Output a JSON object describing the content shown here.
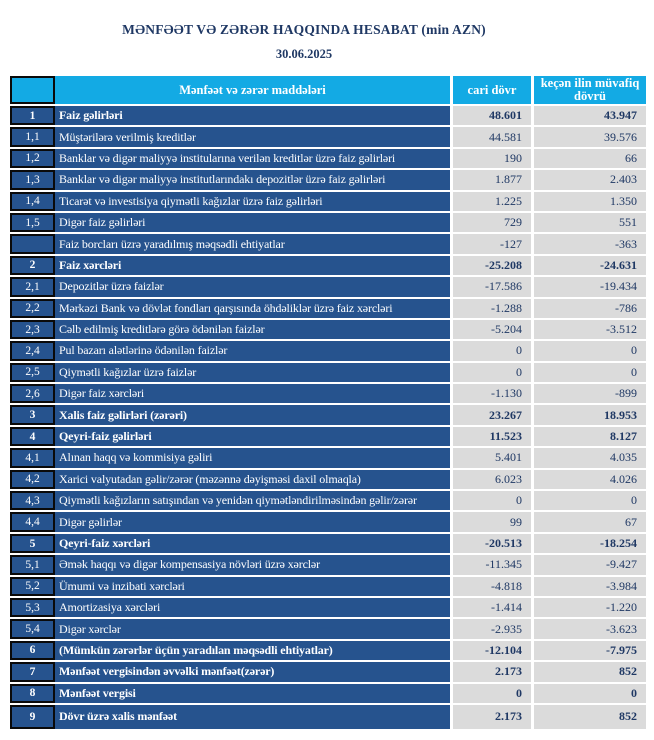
{
  "page": {
    "title": "MƏNFƏƏT VƏ ZƏRƏR HAQQINDA HESABAT (min AZN)",
    "date": "30.06.2025"
  },
  "colors": {
    "header_blue": "#13AAE4",
    "row_blue": "#26538E",
    "cell_gray": "#DBDBDB",
    "value_navy": "#1F3864",
    "title_navy": "#1F3864",
    "border_black": "#0A0A0A"
  },
  "table": {
    "headers": {
      "number": "",
      "items": "Mənfəət və zərər maddələri",
      "current": "cari dövr",
      "previous": "keçən ilin müvafiq dövrü"
    },
    "rows": [
      {
        "num": "1",
        "label": "Faiz  gəlirləri",
        "cur": "48.601",
        "prev": "43.947",
        "bold": true
      },
      {
        "num": "1,1",
        "label": "Müştərilərə verilmiş kreditlər",
        "cur": "44.581",
        "prev": "39.576",
        "bold": false
      },
      {
        "num": "1,2",
        "label": "Banklar və digər maliyyə institularına verilən kreditlər üzrə faiz gəlirləri",
        "cur": "190",
        "prev": "66",
        "bold": false
      },
      {
        "num": "1,3",
        "label": "Banklar və digər maliyyə institutlarındakı depozitlər üzrə faiz gəlirləri",
        "cur": "1.877",
        "prev": "2.403",
        "bold": false
      },
      {
        "num": "1,4",
        "label": "Ticarət və investisiya qiymətli kağızlar üzrə faiz gəlirləri",
        "cur": "1.225",
        "prev": "1.350",
        "bold": false
      },
      {
        "num": "1,5",
        "label": "Digər faiz gəlirləri",
        "cur": "729",
        "prev": "551",
        "bold": false
      },
      {
        "num": "",
        "label": "Faiz borcları üzrə yaradılmış məqsədli ehtiyatlar",
        "cur": "-127",
        "prev": "-363",
        "bold": false
      },
      {
        "num": "2",
        "label": "Faiz xərcləri",
        "cur": "-25.208",
        "prev": "-24.631",
        "bold": true
      },
      {
        "num": "2,1",
        "label": "Depozitlər üzrə faizlər",
        "cur": "-17.586",
        "prev": "-19.434",
        "bold": false
      },
      {
        "num": "2,2",
        "label": "Mərkəzi Bank və dövlət fondları qarşısında öhdəliklər üzrə faiz xərcləri",
        "cur": "-1.288",
        "prev": "-786",
        "bold": false
      },
      {
        "num": "2,3",
        "label": "Cəlb edilmiş kreditlərə görə ödənilən faizlər",
        "cur": "-5.204",
        "prev": "-3.512",
        "bold": false
      },
      {
        "num": "2,4",
        "label": "Pul bazarı alətlərinə ödənilən faizlər",
        "cur": "0",
        "prev": "0",
        "bold": false
      },
      {
        "num": "2,5",
        "label": "Qiymətli kağızlar üzrə faizlər",
        "cur": "0",
        "prev": "0",
        "bold": false
      },
      {
        "num": "2,6",
        "label": "Digər faiz xərcləri",
        "cur": "-1.130",
        "prev": "-899",
        "bold": false
      },
      {
        "num": "3",
        "label": "Xalis faiz gəlirləri (zərəri)",
        "cur": "23.267",
        "prev": "18.953",
        "bold": true
      },
      {
        "num": "4",
        "label": "Qeyri-faiz gəlirləri",
        "cur": "11.523",
        "prev": "8.127",
        "bold": true
      },
      {
        "num": "4,1",
        "label": "Alınan haqq və kommisiya gəliri",
        "cur": "5.401",
        "prev": "4.035",
        "bold": false
      },
      {
        "num": "4,2",
        "label": "Xarici valyutadan gəlir/zərər (məzənnə dəyişməsi daxil olmaqla)",
        "cur": "6.023",
        "prev": "4.026",
        "bold": false
      },
      {
        "num": "4,3",
        "label": "Qiymətli kağızların satışından və yenidən qiymətləndirilməsindən gəlir/zərər",
        "cur": "0",
        "prev": "0",
        "bold": false
      },
      {
        "num": "4,4",
        "label": "Digər gəlirlər",
        "cur": "99",
        "prev": "67",
        "bold": false
      },
      {
        "num": "5",
        "label": "Qeyri-faiz xərcləri",
        "cur": "-20.513",
        "prev": "-18.254",
        "bold": true
      },
      {
        "num": "5,1",
        "label": "Əmək haqqı və digər kompensasiya növləri üzrə xərclər",
        "cur": "-11.345",
        "prev": "-9.427",
        "bold": false
      },
      {
        "num": "5,2",
        "label": "Ümumi və inzibati xərcləri",
        "cur": "-4.818",
        "prev": "-3.984",
        "bold": false
      },
      {
        "num": "5,3",
        "label": "Amortizasiya xərcləri",
        "cur": "-1.414",
        "prev": "-1.220",
        "bold": false
      },
      {
        "num": "5,4",
        "label": "Digər xərclər",
        "cur": "-2.935",
        "prev": "-3.623",
        "bold": false
      },
      {
        "num": "6",
        "label": "(Mümkün zərərlər üçün yaradılan məqsədli ehtiyatlar)",
        "cur": "-12.104",
        "prev": "-7.975",
        "bold": true
      },
      {
        "num": "7",
        "label": "Mənfəət vergisindən əvvəlki mənfəət(zərər)",
        "cur": "2.173",
        "prev": "852",
        "bold": true
      },
      {
        "num": "8",
        "label": "Mənfəət vergisi",
        "cur": "0",
        "prev": "0",
        "bold": true
      },
      {
        "num": "9",
        "label": "Dövr üzrə xalis mənfəət",
        "cur": "2.173",
        "prev": "852",
        "bold": true
      }
    ]
  }
}
